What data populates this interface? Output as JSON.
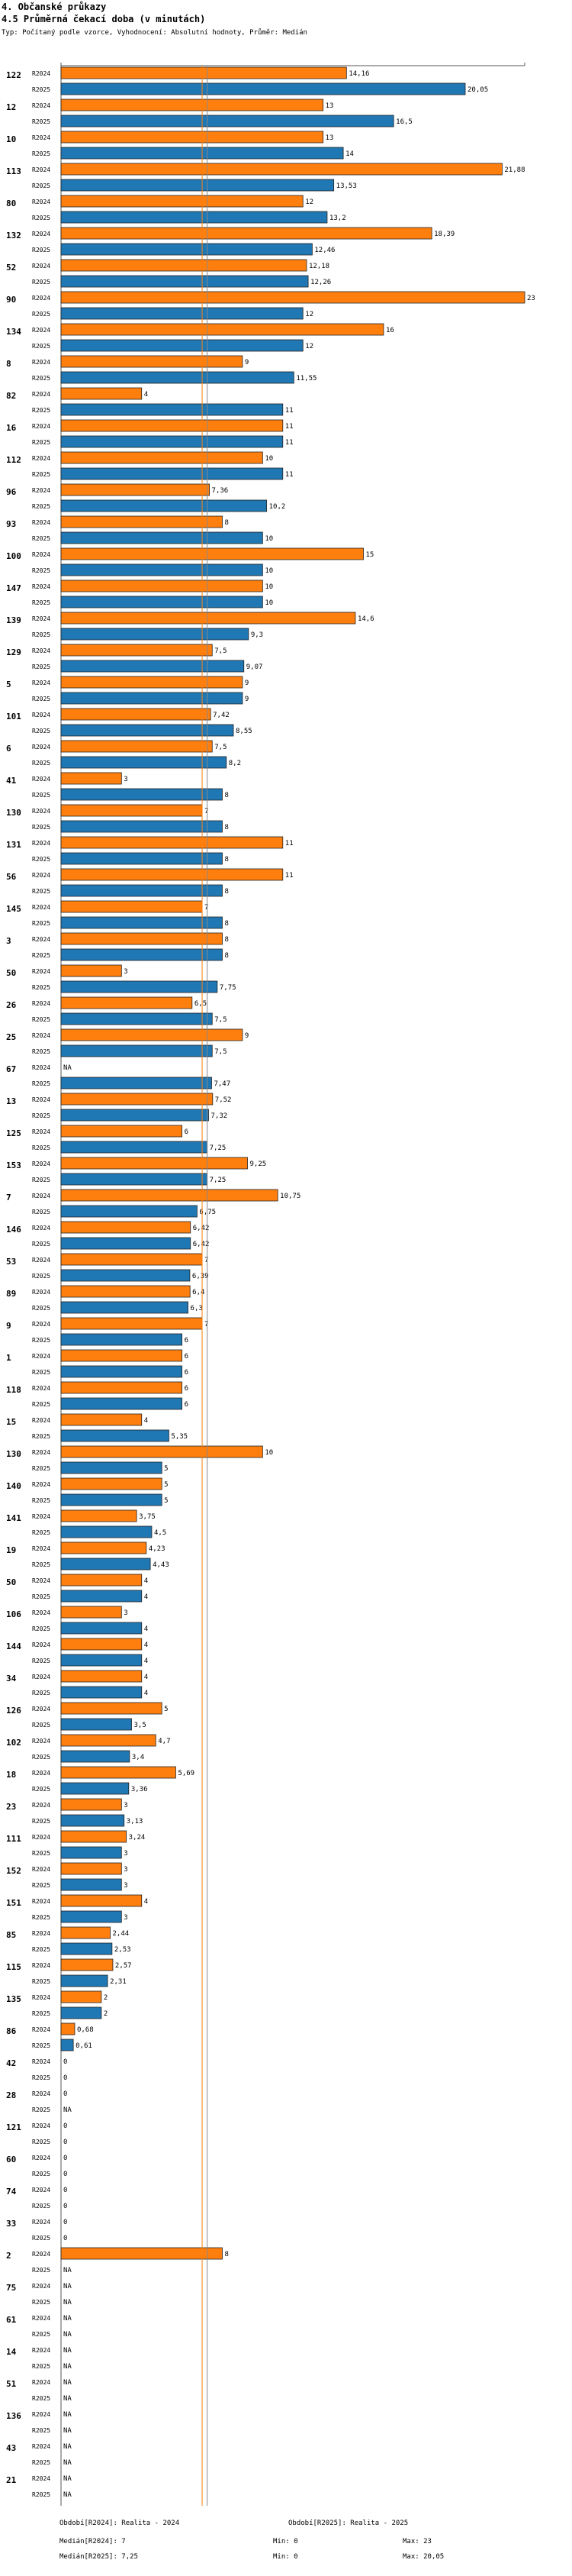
{
  "header": {
    "section": "4. Občanské průkazy",
    "title": "4.5 Průměrná čekací doba (v minutách)",
    "subtitle": "Typ: Počítaný podle vzorce, Vyhodnocení: Absolutní hodnoty, Průměr: Medián"
  },
  "footer": {
    "period1_label": "Období[R2024]: Realita - 2024",
    "period2_label": "Období[R2025]: Realita - 2025",
    "median1": "Medián[R2024]: 7",
    "min1": "Min: 0",
    "max1": "Max: 23",
    "median2": "Medián[R2025]: 7,25",
    "min2": "Min: 0",
    "max2": "Max: 20,05"
  },
  "chart_data": {
    "type": "bar",
    "orientation": "horizontal",
    "title": "4.5 Průměrná čekací doba (v minutách)",
    "xlim": [
      0,
      23
    ],
    "medians": {
      "R2024": 7,
      "R2025": 7.25
    },
    "colors": {
      "R2024": "#ff7f0e",
      "R2025": "#1f77b4",
      "median2024": "#ff7f0e",
      "median2025": "#888888"
    },
    "series_names": [
      "R2024",
      "R2025"
    ],
    "categories": [
      "122",
      "12",
      "10",
      "113",
      "80",
      "132",
      "52",
      "90",
      "134",
      "8",
      "82",
      "16",
      "112",
      "96",
      "93",
      "100",
      "147",
      "139",
      "129",
      "5",
      "101",
      "6",
      "41",
      "130",
      "131",
      "56",
      "145",
      "3",
      "50",
      "26",
      "25",
      "67",
      "13",
      "125",
      "153",
      "7",
      "146",
      "53",
      "89",
      "9",
      "1",
      "118",
      "15",
      "130",
      "140",
      "141",
      "19",
      "50",
      "106",
      "144",
      "34",
      "126",
      "102",
      "18",
      "23",
      "111",
      "152",
      "151",
      "85",
      "115",
      "135",
      "86",
      "42",
      "28",
      "121",
      "60",
      "74",
      "33",
      "2",
      "75",
      "61",
      "14",
      "51",
      "136",
      "43",
      "21"
    ],
    "R2024": [
      14.16,
      13,
      13,
      21.88,
      12,
      18.39,
      12.18,
      23,
      16,
      9,
      4,
      11,
      10,
      7.36,
      8,
      15,
      10,
      14.6,
      7.5,
      9,
      7.42,
      7.5,
      3,
      7,
      11,
      11,
      7,
      8,
      3,
      6.5,
      9,
      null,
      7.52,
      6,
      9.25,
      10.75,
      6.42,
      7,
      6.4,
      7,
      6,
      6,
      4,
      10,
      5,
      3.75,
      4.23,
      4,
      3,
      4,
      4,
      5,
      4.7,
      5.69,
      3,
      3.24,
      3,
      4,
      2.44,
      2.57,
      2,
      0.68,
      0,
      0,
      0,
      0,
      0,
      0,
      8,
      null,
      null,
      null,
      null,
      null,
      null,
      null
    ],
    "R2025": [
      20.05,
      16.5,
      14,
      13.53,
      13.2,
      12.46,
      12.26,
      12,
      12,
      11.55,
      11,
      11,
      11,
      10.2,
      10,
      10,
      10,
      9.3,
      9.07,
      9,
      8.55,
      8.2,
      8,
      8,
      8,
      8,
      8,
      8,
      7.75,
      7.5,
      7.5,
      7.47,
      7.32,
      7.25,
      7.25,
      6.75,
      6.42,
      6.39,
      6.3,
      6,
      6,
      6,
      5.35,
      5,
      5,
      4.5,
      4.43,
      4,
      4,
      4,
      4,
      3.5,
      3.4,
      3.36,
      3.13,
      3,
      3,
      3,
      2.53,
      2.31,
      2,
      0.61,
      0,
      null,
      0,
      0,
      0,
      0,
      null,
      null,
      null,
      null,
      null,
      null,
      null,
      null
    ],
    "R2024_labels": [
      "14,16",
      "13",
      "13",
      "21,88",
      "12",
      "18,39",
      "12,18",
      "23",
      "16",
      "9",
      "4",
      "11",
      "10",
      "7,36",
      "8",
      "15",
      "10",
      "14,6",
      "7,5",
      "9",
      "7,42",
      "7,5",
      "3",
      "7",
      "11",
      "11",
      "7",
      "8",
      "3",
      "6,5",
      "9",
      "NA",
      "7,52",
      "6",
      "9,25",
      "10,75",
      "6,42",
      "7",
      "6,4",
      "7",
      "6",
      "6",
      "4",
      "10",
      "5",
      "3,75",
      "4,23",
      "4",
      "3",
      "4",
      "4",
      "5",
      "4,7",
      "5,69",
      "3",
      "3,24",
      "3",
      "4",
      "2,44",
      "2,57",
      "2",
      "0,68",
      "0",
      "0",
      "0",
      "0",
      "0",
      "0",
      "8",
      "NA",
      "NA",
      "NA",
      "NA",
      "NA",
      "NA",
      "NA"
    ],
    "R2025_labels": [
      "20,05",
      "16,5",
      "14",
      "13,53",
      "13,2",
      "12,46",
      "12,26",
      "12",
      "12",
      "11,55",
      "11",
      "11",
      "11",
      "10,2",
      "10",
      "10",
      "10",
      "9,3",
      "9,07",
      "9",
      "8,55",
      "8,2",
      "8",
      "8",
      "8",
      "8",
      "8",
      "8",
      "7,75",
      "7,5",
      "7,5",
      "7,47",
      "7,32",
      "7,25",
      "7,25",
      "6,75",
      "6,42",
      "6,39",
      "6,3",
      "6",
      "6",
      "6",
      "5,35",
      "5",
      "5",
      "4,5",
      "4,43",
      "4",
      "4",
      "4",
      "4",
      "3,5",
      "3,4",
      "3,36",
      "3,13",
      "3",
      "3",
      "3",
      "2,53",
      "2,31",
      "2",
      "0,61",
      "0",
      "NA",
      "0",
      "0",
      "0",
      "0",
      "NA",
      "NA",
      "NA",
      "NA",
      "NA",
      "NA",
      "NA",
      "NA"
    ]
  }
}
